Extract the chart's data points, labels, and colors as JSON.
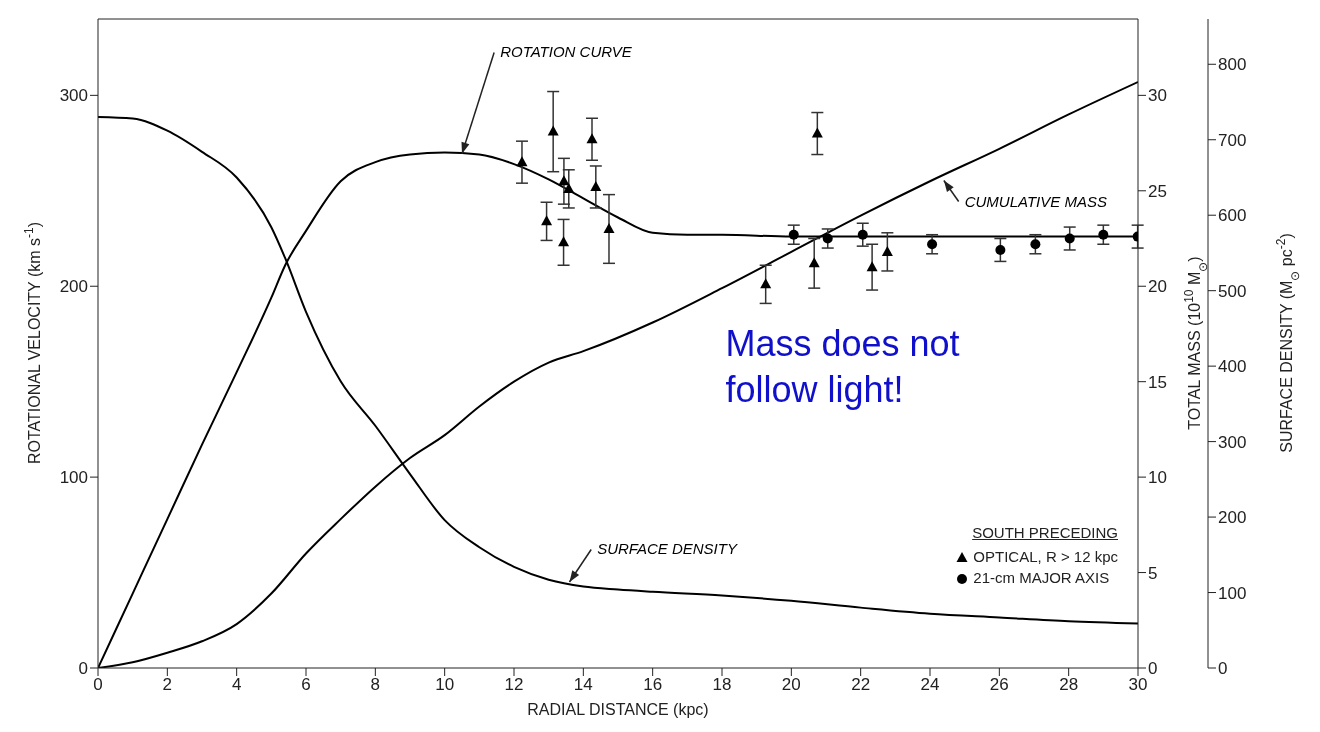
{
  "chart_data": {
    "type": "line",
    "xlabel": "RADIAL DISTANCE (kpc)",
    "ylabel": "ROTATIONAL VELOCITY (km s$^{-1}$)",
    "y2label": "TOTAL MASS (10$^{10}$ M$_{⊙}$)",
    "y3label": "SURFACE DENSITY (M$_{⊙}$ pc$^{-2}$)",
    "legend_title": "SOUTH PRECEDING",
    "legend": "bottom right",
    "grid": false,
    "xlim": [
      0,
      30
    ],
    "xticks": [
      0,
      2,
      4,
      6,
      8,
      10,
      12,
      14,
      16,
      18,
      20,
      22,
      24,
      26,
      28,
      30
    ],
    "ylim": [
      0,
      340
    ],
    "yticks": [
      0,
      100,
      200,
      300
    ],
    "y2lim": [
      0,
      34
    ],
    "y2ticks": [
      0,
      5,
      10,
      15,
      20,
      25,
      30
    ],
    "y3lim": [
      0,
      860
    ],
    "y3ticks": [
      0,
      100,
      200,
      300,
      400,
      500,
      600,
      700,
      800
    ],
    "annotations": [
      "Mass does not follow light!"
    ],
    "series": [
      {
        "name": "ROTATION CURVE",
        "color": "#000000",
        "marker": "none",
        "x": [
          0,
          1,
          2,
          3,
          4,
          5,
          5.4,
          6,
          7,
          8,
          9,
          10,
          11,
          12,
          13,
          14,
          15,
          16,
          17,
          18,
          20,
          22,
          24,
          26,
          28,
          30
        ],
        "values": [
          0,
          39,
          78,
          117,
          155,
          194,
          211,
          229,
          255,
          265,
          269,
          270,
          269,
          264,
          256,
          246,
          236,
          228,
          227,
          227,
          226,
          226,
          226,
          226,
          226,
          226
        ]
      },
      {
        "name": "CUMULATIVE MASS",
        "axis": "y2",
        "color": "#000000",
        "marker": "none",
        "x": [
          0,
          1,
          2,
          3,
          4,
          5,
          6,
          7,
          8,
          9,
          10,
          11,
          12,
          13,
          14,
          16,
          18,
          20,
          22,
          24,
          26,
          28,
          30
        ],
        "values": [
          0,
          0.3,
          0.8,
          1.4,
          2.3,
          3.9,
          6.0,
          7.8,
          9.5,
          11.0,
          12.2,
          13.7,
          15.0,
          16.0,
          16.6,
          18.1,
          19.9,
          21.8,
          23.7,
          25.5,
          27.2,
          29.0,
          30.7
        ]
      },
      {
        "name": "SURFACE DENSITY",
        "axis": "y3",
        "color": "#000000",
        "marker": "none",
        "x": [
          0,
          1,
          2,
          3,
          4,
          5,
          5.4,
          6,
          7,
          8,
          9,
          10,
          11,
          12,
          13,
          14,
          15,
          16,
          18,
          20,
          22,
          24,
          26,
          28,
          30
        ],
        "values": [
          730,
          728,
          712,
          684,
          650,
          584,
          543,
          472,
          380,
          321,
          257,
          196,
          160,
          134,
          117,
          108,
          104,
          101,
          96,
          89,
          80,
          72,
          67,
          62,
          59
        ]
      },
      {
        "name": "OPTICAL, R > 12 kpc",
        "type": "scatter",
        "color": "#000000",
        "marker": "triangle",
        "x": [
          12.23,
          13.13,
          14.25,
          13.44,
          13.58,
          14.36,
          12.94,
          13.43,
          14.74,
          19.26,
          20.66,
          22.33,
          22.77,
          20.75
        ],
        "values": [
          265,
          281,
          277,
          255,
          251,
          252,
          234,
          223,
          230,
          201,
          212,
          210,
          218,
          280
        ],
        "errors": [
          11,
          21,
          11,
          12,
          10,
          11,
          10,
          12,
          18,
          10,
          13,
          12,
          10,
          11
        ]
      },
      {
        "name": "21-cm MAJOR AXIS",
        "type": "scatter",
        "color": "#000000",
        "marker": "circle",
        "x": [
          20.07,
          21.05,
          22.06,
          24.06,
          26.03,
          27.04,
          28.03,
          29.0,
          29.99
        ],
        "values": [
          227,
          225,
          227,
          222,
          219,
          222,
          225,
          227,
          226
        ],
        "errors": [
          5,
          5,
          6,
          5,
          6,
          5,
          6,
          5,
          6
        ]
      }
    ]
  }
}
